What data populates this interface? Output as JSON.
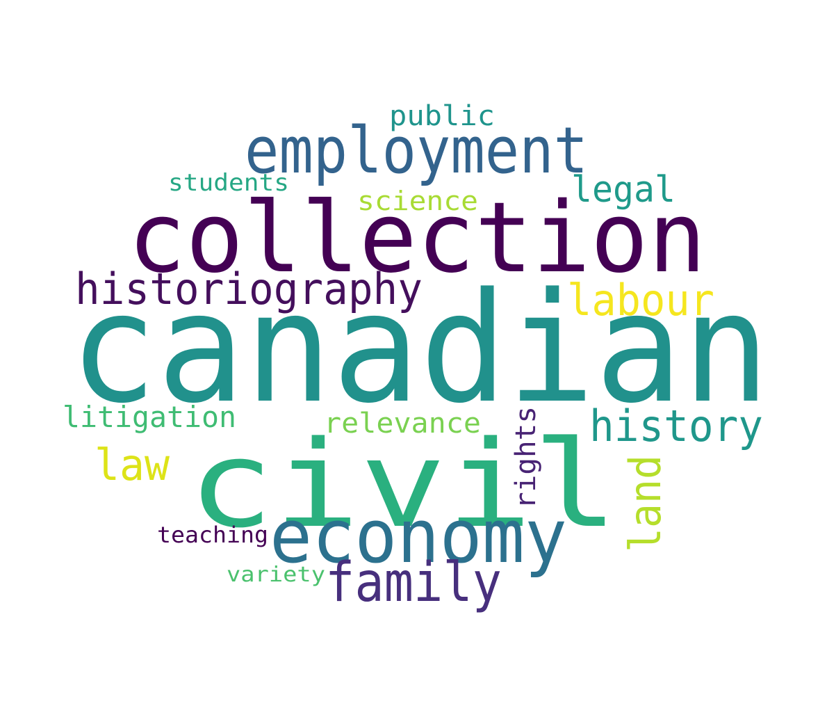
{
  "words": [
    {
      "id": "canadian",
      "text": "canadian",
      "color": "#21918c",
      "vertical": false
    },
    {
      "id": "collection",
      "text": "collection",
      "color": "#440154",
      "vertical": false
    },
    {
      "id": "civil",
      "text": "civil",
      "color": "#2ab07f",
      "vertical": false
    },
    {
      "id": "economy",
      "text": "economy",
      "color": "#2c718e",
      "vertical": false
    },
    {
      "id": "employment",
      "text": "employment",
      "color": "#33638d",
      "vertical": false
    },
    {
      "id": "historiography",
      "text": "historiography",
      "color": "#440f5c",
      "vertical": false
    },
    {
      "id": "family",
      "text": "family",
      "color": "#472f7d",
      "vertical": false
    },
    {
      "id": "history",
      "text": "history",
      "color": "#1f978b",
      "vertical": false
    },
    {
      "id": "labour",
      "text": "labour",
      "color": "#f5e61f",
      "vertical": false
    },
    {
      "id": "land",
      "text": "land",
      "color": "#b5de2b",
      "vertical": true
    },
    {
      "id": "law",
      "text": "law",
      "color": "#dde318",
      "vertical": false
    },
    {
      "id": "legal",
      "text": "legal",
      "color": "#1f9a8a",
      "vertical": false
    },
    {
      "id": "litigation",
      "text": "litigation",
      "color": "#3fbc73",
      "vertical": false
    },
    {
      "id": "relevance",
      "text": "relevance",
      "color": "#7ad151",
      "vertical": false
    },
    {
      "id": "rights",
      "text": "rights",
      "color": "#482374",
      "vertical": true
    },
    {
      "id": "science",
      "text": "science",
      "color": "#a8db34",
      "vertical": false
    },
    {
      "id": "public",
      "text": "public",
      "color": "#1f948c",
      "vertical": false
    },
    {
      "id": "students",
      "text": "students",
      "color": "#26a784",
      "vertical": false
    },
    {
      "id": "teaching",
      "text": "teaching",
      "color": "#440154",
      "vertical": false
    },
    {
      "id": "variety",
      "text": "variety",
      "color": "#4ac16d",
      "vertical": false
    }
  ]
}
